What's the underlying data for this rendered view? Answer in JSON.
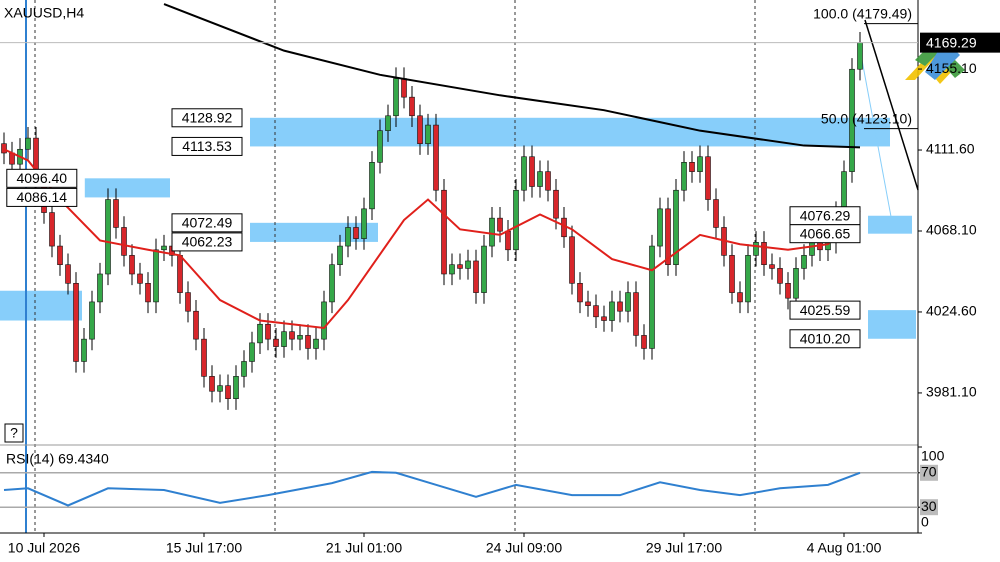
{
  "chart_data": [
    {
      "type": "candlestick",
      "title": "XAUUSD,H4",
      "xlim": [
        -0.5,
        114.25
      ],
      "xticks": [
        {
          "value": 5,
          "label": "10 Jul 2026"
        },
        {
          "value": 25,
          "label": "15 Jul 17:00"
        },
        {
          "value": 45,
          "label": "21 Jul 01:00"
        },
        {
          "value": 65,
          "label": "24 Jul 09:00"
        },
        {
          "value": 85,
          "label": "29 Jul 17:00"
        },
        {
          "value": 105,
          "label": "4 Aug 01:00"
        }
      ],
      "ylim": [
        3954.2,
        4192.2
      ],
      "yticks": [
        {
          "value": 3981.1,
          "label": "3981.10"
        },
        {
          "value": 4024.6,
          "label": "4024.60"
        },
        {
          "value": 4068.1,
          "label": "4068.10"
        },
        {
          "value": 4111.6,
          "label": "4111.60"
        },
        {
          "value": 4155.1,
          "label": "4155.10"
        }
      ],
      "up_color": "#35a849",
      "down_color": "#d8262b",
      "open": [
        4115,
        4110,
        4104,
        4112,
        4118,
        4095,
        4078,
        4060,
        4050,
        4040,
        3998,
        4010,
        4030,
        4045,
        4085,
        4070,
        4055,
        4045,
        4040,
        4030,
        4058,
        4060,
        4055,
        4035,
        4025,
        4010,
        3990,
        3982,
        3985,
        3978,
        3990,
        3998,
        4008,
        4018,
        4010,
        4006,
        4014,
        4010,
        4012,
        4005,
        4010,
        4030,
        4050,
        4060,
        4070,
        4064,
        4080,
        4105,
        4122,
        4130,
        4150,
        4140,
        4130,
        4115,
        4125,
        4090,
        4045,
        4050,
        4048,
        4052,
        4035,
        4060,
        4075,
        4068,
        4058,
        4090,
        4108,
        4092,
        4100,
        4090,
        4075,
        4065,
        4040,
        4030,
        4028,
        4022,
        4020,
        4030,
        4025,
        4035,
        4012,
        4005,
        4060,
        4080,
        4050,
        4090,
        4105,
        4100,
        4108,
        4085,
        4070,
        4055,
        4035,
        4030,
        4055,
        4062,
        4050,
        4048,
        4040,
        4032,
        4048,
        4055,
        4065,
        4058,
        4062,
        4078,
        4100,
        4155
      ],
      "high": [
        4121,
        4116,
        4118,
        4124,
        4124,
        4101,
        4084,
        4066,
        4056,
        4046,
        4016,
        4036,
        4051,
        4091,
        4091,
        4076,
        4061,
        4051,
        4046,
        4064,
        4066,
        4066,
        4061,
        4041,
        4031,
        4016,
        3996,
        3991,
        3991,
        3996,
        4004,
        4014,
        4024,
        4024,
        4016,
        4020,
        4020,
        4018,
        4018,
        4016,
        4036,
        4056,
        4066,
        4076,
        4076,
        4086,
        4111,
        4128,
        4136,
        4156,
        4156,
        4146,
        4136,
        4131,
        4131,
        4096,
        4056,
        4056,
        4058,
        4058,
        4066,
        4081,
        4081,
        4074,
        4096,
        4114,
        4114,
        4106,
        4106,
        4096,
        4081,
        4071,
        4046,
        4036,
        4034,
        4028,
        4036,
        4036,
        4041,
        4041,
        4018,
        4066,
        4086,
        4086,
        4096,
        4111,
        4111,
        4114,
        4114,
        4091,
        4076,
        4061,
        4041,
        4061,
        4068,
        4068,
        4056,
        4054,
        4046,
        4054,
        4061,
        4071,
        4071,
        4068,
        4084,
        4106,
        4161,
        4175
      ],
      "low": [
        4104,
        4098,
        4098,
        4106,
        4089,
        4072,
        4054,
        4044,
        4034,
        3992,
        3992,
        4004,
        4024,
        4039,
        4064,
        4049,
        4039,
        4034,
        4024,
        4024,
        4052,
        4049,
        4029,
        4019,
        4004,
        3984,
        3976,
        3976,
        3972,
        3972,
        3984,
        3992,
        4002,
        4004,
        4000,
        4000,
        4004,
        4004,
        3999,
        3999,
        4004,
        4024,
        4044,
        4054,
        4058,
        4058,
        4074,
        4099,
        4116,
        4124,
        4134,
        4124,
        4109,
        4109,
        4084,
        4039,
        4039,
        4042,
        4042,
        4029,
        4029,
        4054,
        4062,
        4052,
        4052,
        4084,
        4086,
        4086,
        4084,
        4069,
        4059,
        4034,
        4024,
        4022,
        4016,
        4014,
        4014,
        4019,
        4019,
        4006,
        3999,
        3999,
        4054,
        4044,
        4044,
        4084,
        4094,
        4094,
        4079,
        4064,
        4049,
        4029,
        4024,
        4024,
        4049,
        4044,
        4042,
        4034,
        4026,
        4026,
        4042,
        4049,
        4052,
        4052,
        4056,
        4072,
        4094,
        4149
      ],
      "close": [
        4110,
        4104,
        4112,
        4118,
        4095,
        4078,
        4060,
        4050,
        4040,
        3998,
        4010,
        4030,
        4045,
        4085,
        4070,
        4055,
        4045,
        4040,
        4030,
        4058,
        4060,
        4055,
        4035,
        4025,
        4010,
        3990,
        3982,
        3985,
        3978,
        3990,
        3998,
        4008,
        4018,
        4010,
        4006,
        4014,
        4010,
        4012,
        4005,
        4010,
        4030,
        4050,
        4060,
        4070,
        4064,
        4080,
        4105,
        4122,
        4130,
        4150,
        4140,
        4130,
        4115,
        4125,
        4090,
        4045,
        4050,
        4048,
        4052,
        4035,
        4060,
        4075,
        4068,
        4058,
        4090,
        4108,
        4092,
        4100,
        4090,
        4075,
        4065,
        4040,
        4030,
        4028,
        4022,
        4020,
        4030,
        4025,
        4035,
        4012,
        4005,
        4060,
        4080,
        4050,
        4090,
        4105,
        4100,
        4108,
        4085,
        4070,
        4055,
        4035,
        4030,
        4055,
        4062,
        4050,
        4048,
        4040,
        4032,
        4048,
        4055,
        4065,
        4058,
        4062,
        4078,
        4100,
        4155,
        4169.29
      ],
      "last_price": 4169.29,
      "overlays": [
        {
          "color": "#000000",
          "x": [
            20,
            35,
            47,
            62,
            75,
            87,
            100,
            107
          ],
          "values": [
            4190,
            4165,
            4152,
            4141,
            4133,
            4122,
            4114,
            4113
          ]
        },
        {
          "color": "#e0201b",
          "x": [
            0,
            3,
            7,
            12,
            18,
            22,
            27,
            32,
            40,
            43,
            50,
            53,
            57,
            62,
            67,
            71,
            76,
            81,
            87,
            92,
            98,
            103,
            107
          ],
          "values": [
            4112,
            4106,
            4085,
            4063,
            4058,
            4055,
            4031,
            4020,
            4016,
            4031,
            4074,
            4085,
            4069,
            4066,
            4077,
            4069,
            4053,
            4047,
            4066,
            4061,
            4058,
            4061,
            4079
          ]
        }
      ],
      "zone_color": "#87cefa",
      "zones": [
        {
          "top": 4036,
          "bottom": 4020,
          "start": -0.5,
          "end": 9.75
        },
        {
          "top": {
            "value": 4096.4,
            "label": "4096.40"
          },
          "bottom": 4086.14,
          "start": 10.1,
          "end": 20.75
        },
        {
          "top": 4128.92,
          "bottom": 4113.53,
          "start": 30.75,
          "end": 110.75
        },
        {
          "top": 4072.49,
          "bottom": 4062.23,
          "start": 30.75,
          "end": 46.75
        },
        {
          "top": 4076.29,
          "bottom": 4066.65,
          "start": 108,
          "end": 113.5
        },
        {
          "top": 4025.59,
          "bottom": {
            "value": 4010.2,
            "label": "4010.20"
          },
          "start": 108,
          "end": 114
        }
      ],
      "fib_start": 107.5,
      "fib": [
        {
          "label": "100.0 (4179.49)",
          "value": 4179.49
        },
        {
          "label": "50.0 (4123.10)",
          "value": 4123.1
        }
      ]
    },
    {
      "type": "line",
      "title": "RSI(14) 69.4340",
      "color": "#2f80d0",
      "ylim": [
        0,
        100
      ],
      "yticks": [
        0,
        30,
        70,
        100
      ],
      "levels": [
        30,
        70
      ],
      "x": [
        0,
        3,
        8,
        13,
        20,
        27,
        33,
        41,
        46,
        49,
        54,
        59,
        64,
        71,
        77,
        82,
        87,
        92,
        97,
        103,
        107
      ],
      "values": [
        50,
        52,
        32,
        52,
        50,
        35,
        44,
        58,
        71,
        70,
        56,
        42,
        56,
        44,
        44,
        59,
        50,
        44,
        52,
        56,
        70
      ]
    }
  ],
  "help": "?"
}
